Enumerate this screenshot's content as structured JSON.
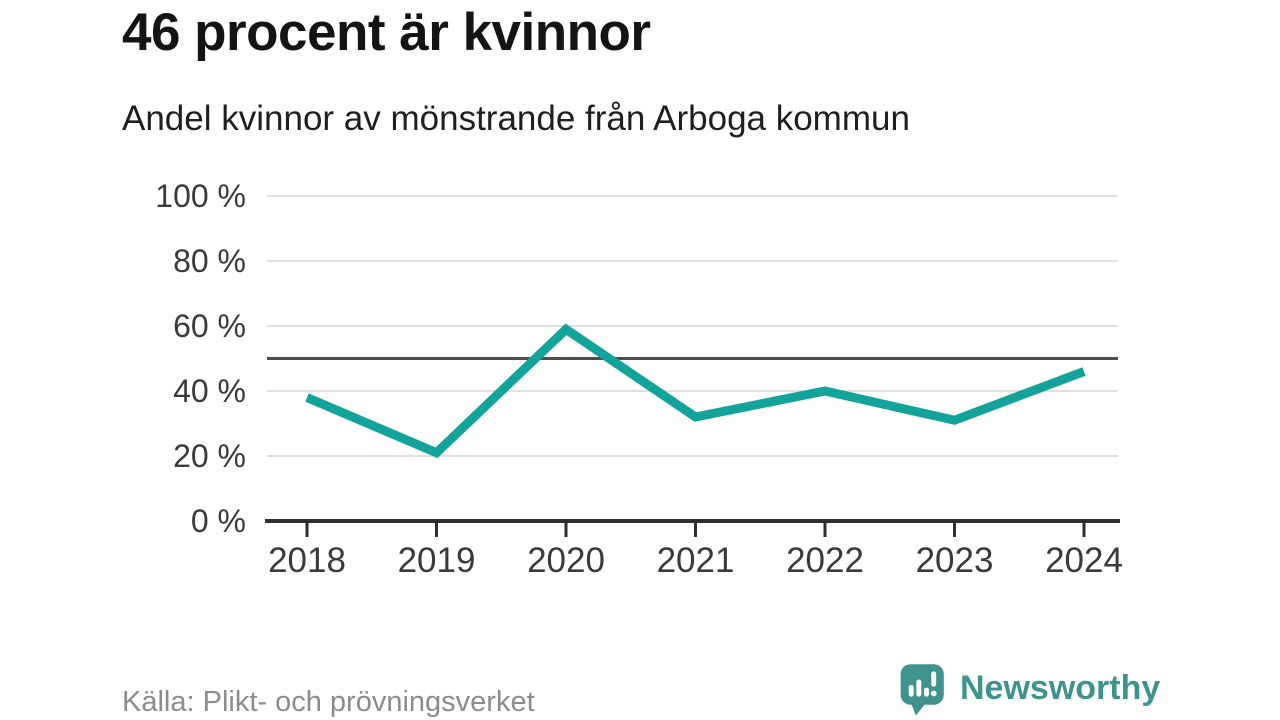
{
  "header": {
    "title": "46 procent är kvinnor",
    "subtitle": "Andel kvinnor av mönstrande från Arboga kommun"
  },
  "chart_data": {
    "type": "line",
    "title": "46 procent är kvinnor",
    "subtitle": "Andel kvinnor av mönstrande från Arboga kommun",
    "x": [
      "2018",
      "2019",
      "2020",
      "2021",
      "2022",
      "2023",
      "2024"
    ],
    "series": [
      {
        "name": "Andel kvinnor av mönstrande",
        "values": [
          38,
          21,
          59,
          32,
          40,
          31,
          46
        ],
        "color": "#12a39a"
      }
    ],
    "unit": "%",
    "ylim": [
      0,
      100
    ],
    "yticks": [
      {
        "value": 0,
        "label": "0 %"
      },
      {
        "value": 20,
        "label": "20 %"
      },
      {
        "value": 40,
        "label": "40 %"
      },
      {
        "value": 60,
        "label": "60 %"
      },
      {
        "value": 80,
        "label": "80 %"
      },
      {
        "value": 100,
        "label": "100 %"
      }
    ],
    "reference_line": {
      "value": 50
    },
    "grid": "horizontal-only",
    "legend": "none"
  },
  "footer": {
    "source": "Källa: Plikt- och prövningsverket",
    "brand": "Newsworthy",
    "logo_icon": "newsworthy-speech-bubble-chart-icon"
  },
  "colors": {
    "line": "#12a39a",
    "reference_line": "#4d4d4d",
    "gridline": "#e0e0e0",
    "axis": "#2e2e2e",
    "tick_label": "#3a3a3a",
    "title_text": "#141414",
    "source_text": "#8c8c8c",
    "brand": "#3e948d"
  }
}
